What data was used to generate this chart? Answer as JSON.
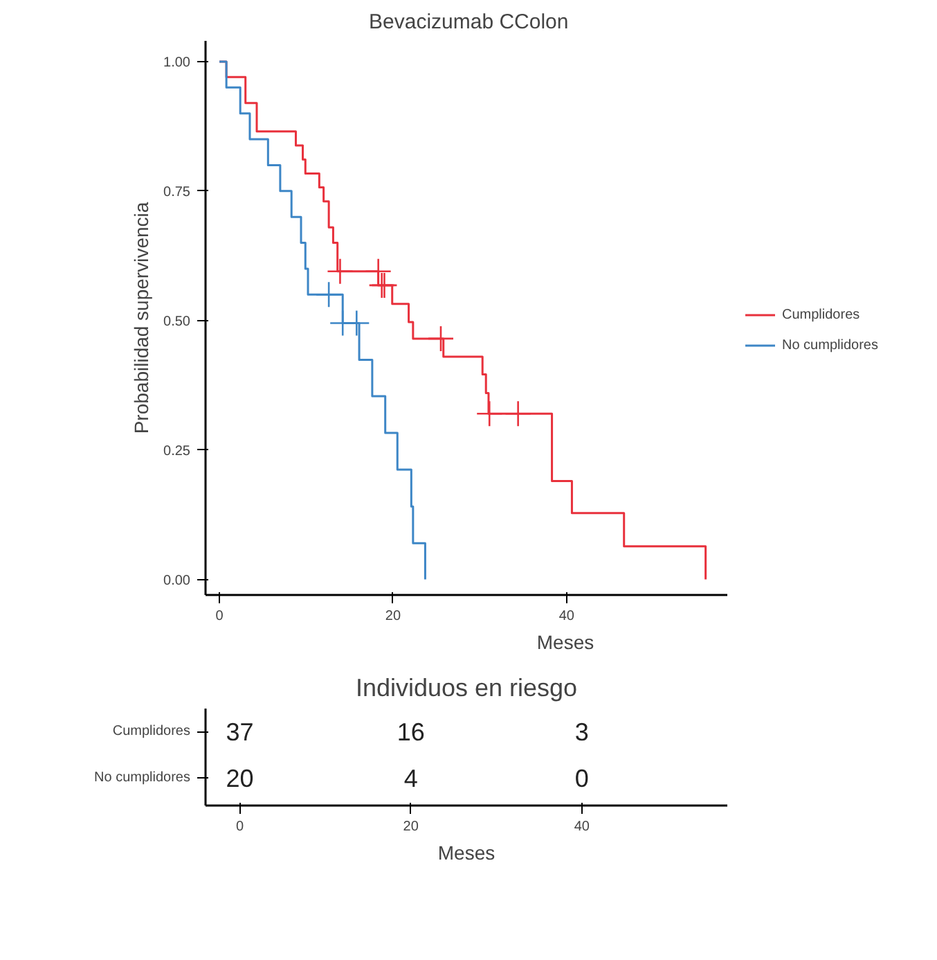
{
  "chart_data": [
    {
      "type": "step",
      "title": "Bevacizumab CColon",
      "xlabel": "Meses",
      "ylabel": "Probabilidad supervivencia",
      "xlim": [
        -1.6,
        58.5
      ],
      "ylim": [
        -0.03,
        1.04
      ],
      "xticks": [
        0,
        20,
        40
      ],
      "yticks": [
        {
          "value": 0,
          "label": "0.00"
        },
        {
          "value": 0.25,
          "label": "0.25"
        },
        {
          "value": 0.5,
          "label": "0.50"
        },
        {
          "value": 0.75,
          "label": "0.75"
        },
        {
          "value": 1,
          "label": "1.00"
        }
      ],
      "grid": false,
      "legend": "right",
      "marker": "none",
      "line_style": "solid",
      "series": [
        {
          "name": "Cumplidores",
          "color": "#e8313c",
          "x": [
            0,
            0.8,
            3.0,
            4.3,
            8.8,
            9.6,
            9.9,
            11.5,
            12.0,
            12.6,
            13.1,
            13.6,
            18.3,
            19.9,
            21.8,
            22.3,
            25.8,
            30.3,
            30.7,
            31.0,
            38.3,
            40.6,
            46.6,
            56.0
          ],
          "values": [
            1.0,
            0.97,
            0.92,
            0.865,
            0.838,
            0.811,
            0.784,
            0.757,
            0.73,
            0.68,
            0.65,
            0.595,
            0.568,
            0.532,
            0.497,
            0.465,
            0.43,
            0.396,
            0.36,
            0.32,
            0.19,
            0.128,
            0.064,
            0.0
          ]
        },
        {
          "name": "No cumplidores",
          "color": "#3d86c6",
          "x": [
            0,
            0.8,
            2.4,
            3.5,
            5.6,
            7.0,
            8.3,
            9.4,
            9.9,
            10.2,
            14.2,
            16.1,
            17.6,
            19.1,
            20.5,
            22.1,
            22.3,
            23.7
          ],
          "values": [
            1.0,
            0.95,
            0.9,
            0.85,
            0.8,
            0.75,
            0.7,
            0.65,
            0.6,
            0.55,
            0.495,
            0.424,
            0.354,
            0.283,
            0.212,
            0.141,
            0.07,
            0.0
          ]
        },
        {
          "type": "scatter",
          "marker": "cross",
          "color": "#e8313c",
          "x": [
            13.9,
            18.3,
            18.7,
            19.0,
            25.5,
            31.1,
            34.4
          ],
          "values": [
            0.595,
            0.595,
            0.568,
            0.568,
            0.465,
            0.32,
            0.32
          ]
        },
        {
          "type": "scatter",
          "marker": "cross",
          "color": "#3d86c6",
          "x": [
            12.6,
            14.2,
            15.8
          ],
          "values": [
            0.55,
            0.495,
            0.495
          ]
        }
      ]
    },
    {
      "type": "heatmap",
      "title": "Individuos en riesgo",
      "xlabel": "Meses",
      "categories": [
        "0",
        "20",
        "40"
      ],
      "y_categories": [
        "Cumplidores",
        "No cumplidores"
      ],
      "data_labels": true,
      "cells": [
        [
          37,
          16,
          3
        ],
        [
          20,
          4,
          0
        ]
      ]
    }
  ]
}
